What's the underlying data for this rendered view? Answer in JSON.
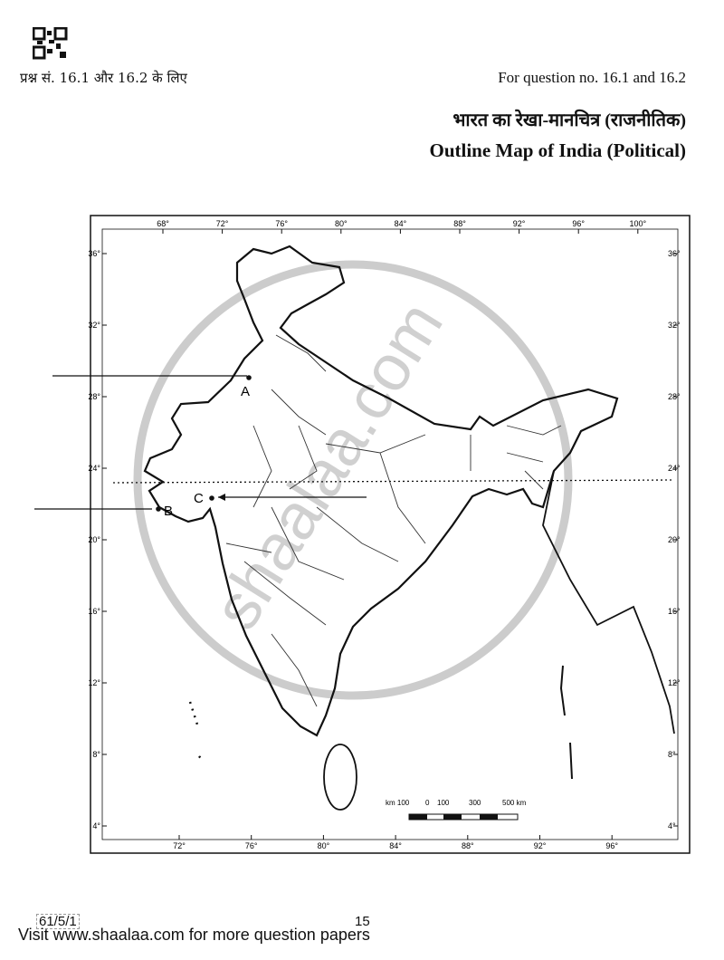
{
  "header": {
    "qr_code": "qr-code",
    "question_ref_hi": "प्रश्न सं. 16.1 और 16.2 के लिए",
    "question_ref_en": "For question no. 16.1 and 16.2",
    "title_hi": "भारत का रेखा-मानचित्र (राजनीतिक)",
    "title_en": "Outline Map of India (Political)"
  },
  "map": {
    "top_longitudes": [
      "68°",
      "72°",
      "76°",
      "80°",
      "84°",
      "88°",
      "92°",
      "96°",
      "100°"
    ],
    "bottom_longitudes": [
      "72°",
      "76°",
      "80°",
      "84°",
      "88°",
      "92°",
      "96°"
    ],
    "latitudes": [
      "36°",
      "32°",
      "28°",
      "24°",
      "20°",
      "16°",
      "12°",
      "8°",
      "4°"
    ],
    "points": [
      {
        "label": "A"
      },
      {
        "label": "B"
      },
      {
        "label": "C"
      }
    ],
    "scale": {
      "labels": [
        "km 100",
        "0",
        "100",
        "300",
        "500 km"
      ]
    },
    "watermark": "shaalaa.com",
    "line_color": "#111111"
  },
  "footer": {
    "code": "61/5/1",
    "page_number": "15",
    "promo": "Visit www.shaalaa.com for more question papers"
  }
}
